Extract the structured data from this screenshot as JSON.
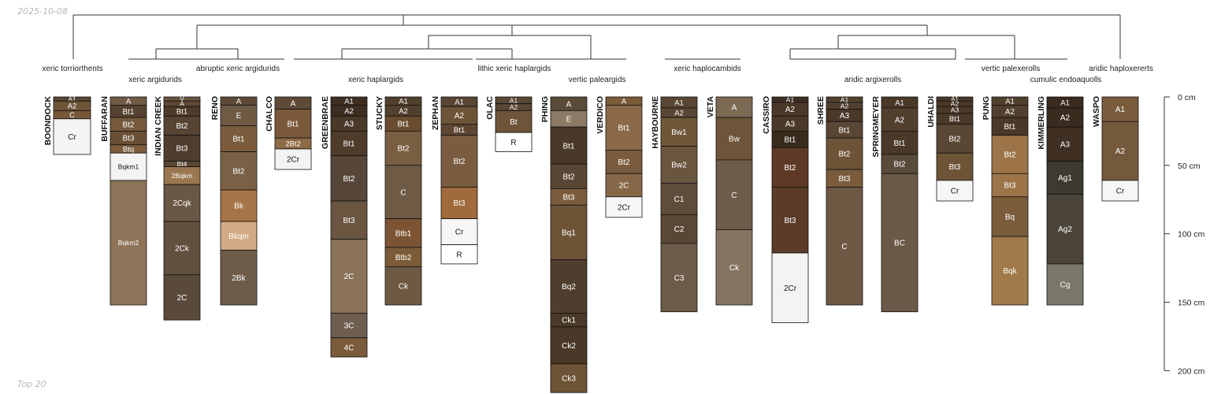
{
  "date_label": "2025-10-08",
  "footer_label": "Top 20",
  "depth_axis": {
    "max_cm": 200,
    "ticks": [
      {
        "value": 0,
        "label": "0 cm"
      },
      {
        "value": 50,
        "label": "50 cm"
      },
      {
        "value": 100,
        "label": "100 cm"
      },
      {
        "value": 150,
        "label": "150 cm"
      },
      {
        "value": 200,
        "label": "200 cm"
      }
    ]
  },
  "taxa": [
    {
      "label": "xeric torriorthents"
    },
    {
      "label": "xeric argidurids"
    },
    {
      "label": "abruptic xeric argidurids"
    },
    {
      "label": "xeric haplargids"
    },
    {
      "label": "lithic xeric haplargids"
    },
    {
      "label": "vertic paleargids"
    },
    {
      "label": "xeric haplocambids"
    },
    {
      "label": "aridic argixerolls"
    },
    {
      "label": "vertic palexerolls"
    },
    {
      "label": "cumulic endoaquolls"
    },
    {
      "label": "aridic haploxererts"
    }
  ],
  "profiles": [
    {
      "name": "BOONDOCK",
      "horizons": [
        {
          "name": "A1",
          "top": 0,
          "bottom": 3,
          "color": "#5a4634"
        },
        {
          "name": "A2",
          "top": 3,
          "bottom": 10,
          "color": "#6e5538"
        },
        {
          "name": "C",
          "top": 10,
          "bottom": 16,
          "color": "#76583a"
        },
        {
          "name": "Cr",
          "top": 16,
          "bottom": 42,
          "color": "#f4f4f4"
        }
      ]
    },
    {
      "name": "BUFFARAN",
      "horizons": [
        {
          "name": "A",
          "top": 0,
          "bottom": 6,
          "color": "#6f5b46"
        },
        {
          "name": "Bt1",
          "top": 6,
          "bottom": 15,
          "color": "#56432f"
        },
        {
          "name": "Bt2",
          "top": 15,
          "bottom": 25,
          "color": "#76593c"
        },
        {
          "name": "Bt3",
          "top": 25,
          "bottom": 35,
          "color": "#6a4f35"
        },
        {
          "name": "Btq",
          "top": 35,
          "bottom": 41,
          "color": "#7c5e3e"
        },
        {
          "name": "Bqkm1",
          "top": 41,
          "bottom": 61,
          "color": "#f3f3f3"
        },
        {
          "name": "Bqkm2",
          "top": 61,
          "bottom": 152,
          "color": "#8d7357"
        }
      ]
    },
    {
      "name": "INDIAN CREEK",
      "horizons": [
        {
          "name": "V",
          "top": 0,
          "bottom": 3,
          "color": "#6a543d"
        },
        {
          "name": "A",
          "top": 3,
          "bottom": 7,
          "color": "#5e4835"
        },
        {
          "name": "Bt1",
          "top": 7,
          "bottom": 14,
          "color": "#4e3b29"
        },
        {
          "name": "Bt2",
          "top": 14,
          "bottom": 28,
          "color": "#574433"
        },
        {
          "name": "Bt3",
          "top": 28,
          "bottom": 47,
          "color": "#4f3d2d"
        },
        {
          "name": "Bt4",
          "top": 47,
          "bottom": 51,
          "color": "#5a4633"
        },
        {
          "name": "2Bqkm",
          "top": 51,
          "bottom": 64,
          "color": "#9a7750"
        },
        {
          "name": "2Cqk",
          "top": 64,
          "bottom": 91,
          "color": "#6a5744"
        },
        {
          "name": "2Ck",
          "top": 91,
          "bottom": 130,
          "color": "#62503e"
        },
        {
          "name": "2C",
          "top": 130,
          "bottom": 163,
          "color": "#5a4a3b"
        }
      ]
    },
    {
      "name": "RENO",
      "horizons": [
        {
          "name": "A",
          "top": 0,
          "bottom": 6,
          "color": "#5e4a38"
        },
        {
          "name": "E",
          "top": 6,
          "bottom": 21,
          "color": "#6f5a43"
        },
        {
          "name": "Bt1",
          "top": 21,
          "bottom": 40,
          "color": "#7a5c3c"
        },
        {
          "name": "Bt2",
          "top": 40,
          "bottom": 68,
          "color": "#7a6045"
        },
        {
          "name": "Bk",
          "top": 68,
          "bottom": 91,
          "color": "#a67547"
        },
        {
          "name": "Bkqm",
          "top": 91,
          "bottom": 112,
          "color": "#d1ab85"
        },
        {
          "name": "2Bk",
          "top": 112,
          "bottom": 152,
          "color": "#6e5c48"
        }
      ]
    },
    {
      "name": "CHALCO",
      "horizons": [
        {
          "name": "A",
          "top": 0,
          "bottom": 9,
          "color": "#5e4a37"
        },
        {
          "name": "Bt1",
          "top": 9,
          "bottom": 30,
          "color": "#7a5a3a"
        },
        {
          "name": "2Bt2",
          "top": 30,
          "bottom": 38,
          "color": "#8e6a45"
        },
        {
          "name": "2Cr",
          "top": 38,
          "bottom": 53,
          "color": "#f3f3f3"
        }
      ]
    },
    {
      "name": "GREENBRAE",
      "horizons": [
        {
          "name": "A1",
          "top": 0,
          "bottom": 6,
          "color": "#3e2e22"
        },
        {
          "name": "A2",
          "top": 6,
          "bottom": 14,
          "color": "#3e2e22"
        },
        {
          "name": "A3",
          "top": 14,
          "bottom": 25,
          "color": "#4a3828"
        },
        {
          "name": "Bt1",
          "top": 25,
          "bottom": 43,
          "color": "#4f3b2a"
        },
        {
          "name": "Bt2",
          "top": 43,
          "bottom": 76,
          "color": "#56473a"
        },
        {
          "name": "Bt3",
          "top": 76,
          "bottom": 104,
          "color": "#6a5540"
        },
        {
          "name": "2C",
          "top": 104,
          "bottom": 158,
          "color": "#8a7257"
        },
        {
          "name": "3C",
          "top": 158,
          "bottom": 176,
          "color": "#6e5e50"
        },
        {
          "name": "4C",
          "top": 176,
          "bottom": 190,
          "color": "#7a5c3a"
        }
      ]
    },
    {
      "name": "STUCKY",
      "horizons": [
        {
          "name": "A1",
          "top": 0,
          "bottom": 6,
          "color": "#52402e"
        },
        {
          "name": "A2",
          "top": 6,
          "bottom": 14,
          "color": "#52402e"
        },
        {
          "name": "Bt1",
          "top": 14,
          "bottom": 25,
          "color": "#6a4c30"
        },
        {
          "name": "Bt2",
          "top": 25,
          "bottom": 50,
          "color": "#7a5e42"
        },
        {
          "name": "C",
          "top": 50,
          "bottom": 89,
          "color": "#6e5a45"
        },
        {
          "name": "Btb1",
          "top": 89,
          "bottom": 110,
          "color": "#7c5434"
        },
        {
          "name": "Btb2",
          "top": 110,
          "bottom": 124,
          "color": "#7c5c38"
        },
        {
          "name": "Ck",
          "top": 124,
          "bottom": 152,
          "color": "#6e5a43"
        }
      ]
    },
    {
      "name": "ZEPHAN",
      "horizons": [
        {
          "name": "A1",
          "top": 0,
          "bottom": 7,
          "color": "#5a4634"
        },
        {
          "name": "A2",
          "top": 7,
          "bottom": 20,
          "color": "#6e5437"
        },
        {
          "name": "Bt1",
          "top": 20,
          "bottom": 28,
          "color": "#5f4732"
        },
        {
          "name": "Bt2",
          "top": 28,
          "bottom": 66,
          "color": "#7a5d40"
        },
        {
          "name": "Bt3",
          "top": 66,
          "bottom": 89,
          "color": "#a06a3c"
        },
        {
          "name": "Cr",
          "top": 89,
          "bottom": 108,
          "color": "#f6f6f6"
        },
        {
          "name": "R",
          "top": 108,
          "bottom": 122,
          "color": "#ffffff"
        }
      ]
    },
    {
      "name": "OLAC",
      "horizons": [
        {
          "name": "A1",
          "top": 0,
          "bottom": 5,
          "color": "#5a4634"
        },
        {
          "name": "A2",
          "top": 5,
          "bottom": 10,
          "color": "#5a4634"
        },
        {
          "name": "Bt",
          "top": 10,
          "bottom": 26,
          "color": "#6e5438"
        },
        {
          "name": "R",
          "top": 26,
          "bottom": 40,
          "color": "#ffffff"
        }
      ]
    },
    {
      "name": "PHING",
      "horizons": [
        {
          "name": "A",
          "top": 0,
          "bottom": 10,
          "color": "#5a4a38"
        },
        {
          "name": "E",
          "top": 10,
          "bottom": 22,
          "color": "#8c7a66"
        },
        {
          "name": "Bt1",
          "top": 22,
          "bottom": 49,
          "color": "#4a3828"
        },
        {
          "name": "Bt2",
          "top": 49,
          "bottom": 67,
          "color": "#5a4634"
        },
        {
          "name": "Bt3",
          "top": 67,
          "bottom": 79,
          "color": "#7a5c3c"
        },
        {
          "name": "Bq1",
          "top": 79,
          "bottom": 119,
          "color": "#6e5437"
        },
        {
          "name": "Bq2",
          "top": 119,
          "bottom": 158,
          "color": "#4f3e2d"
        },
        {
          "name": "Ck1",
          "top": 158,
          "bottom": 168,
          "color": "#4a3828"
        },
        {
          "name": "Ck2",
          "top": 168,
          "bottom": 195,
          "color": "#4a3828"
        },
        {
          "name": "Ck3",
          "top": 195,
          "bottom": 216,
          "color": "#6e5437"
        }
      ]
    },
    {
      "name": "VERDICO",
      "horizons": [
        {
          "name": "A",
          "top": 0,
          "bottom": 6,
          "color": "#7a5c3a"
        },
        {
          "name": "Bt1",
          "top": 6,
          "bottom": 39,
          "color": "#8a6a48"
        },
        {
          "name": "Bt2",
          "top": 39,
          "bottom": 56,
          "color": "#7a5c3e"
        },
        {
          "name": "2C",
          "top": 56,
          "bottom": 73,
          "color": "#866848"
        },
        {
          "name": "2Cr",
          "top": 73,
          "bottom": 88,
          "color": "#f6f6f6"
        }
      ]
    },
    {
      "name": "HAYBOURNE",
      "horizons": [
        {
          "name": "A1",
          "top": 0,
          "bottom": 8,
          "color": "#5a4634"
        },
        {
          "name": "A2",
          "top": 8,
          "bottom": 15,
          "color": "#5a4634"
        },
        {
          "name": "Bw1",
          "top": 15,
          "bottom": 36,
          "color": "#6e5639"
        },
        {
          "name": "Bw2",
          "top": 36,
          "bottom": 63,
          "color": "#6a553f"
        },
        {
          "name": "C1",
          "top": 63,
          "bottom": 86,
          "color": "#5f4c3a"
        },
        {
          "name": "C2",
          "top": 86,
          "bottom": 107,
          "color": "#5a4735"
        },
        {
          "name": "C3",
          "top": 107,
          "bottom": 157,
          "color": "#6e5c4a"
        }
      ]
    },
    {
      "name": "VETA",
      "horizons": [
        {
          "name": "A",
          "top": 0,
          "bottom": 15,
          "color": "#7d6a55"
        },
        {
          "name": "Bw",
          "top": 15,
          "bottom": 46,
          "color": "#6e5438"
        },
        {
          "name": "C",
          "top": 46,
          "bottom": 97,
          "color": "#6e5c4a"
        },
        {
          "name": "Ck",
          "top": 97,
          "bottom": 152,
          "color": "#857560"
        }
      ]
    },
    {
      "name": "CASSIRO",
      "horizons": [
        {
          "name": "A1",
          "top": 0,
          "bottom": 4,
          "color": "#3e2e22"
        },
        {
          "name": "A2",
          "top": 4,
          "bottom": 14,
          "color": "#4a3828"
        },
        {
          "name": "A3",
          "top": 14,
          "bottom": 25,
          "color": "#4a3828"
        },
        {
          "name": "Bt1",
          "top": 25,
          "bottom": 37,
          "color": "#3a2b1f"
        },
        {
          "name": "Bt2",
          "top": 37,
          "bottom": 66,
          "color": "#5e3a26"
        },
        {
          "name": "Bt3",
          "top": 66,
          "bottom": 114,
          "color": "#5a3c28"
        },
        {
          "name": "2Cr",
          "top": 114,
          "bottom": 165,
          "color": "#f3f3f3"
        }
      ]
    },
    {
      "name": "SHREE",
      "horizons": [
        {
          "name": "A1",
          "top": 0,
          "bottom": 4,
          "color": "#52402e"
        },
        {
          "name": "A2",
          "top": 4,
          "bottom": 9,
          "color": "#52402e"
        },
        {
          "name": "A3",
          "top": 9,
          "bottom": 18,
          "color": "#4a3828"
        },
        {
          "name": "Bt1",
          "top": 18,
          "bottom": 30,
          "color": "#5a4634"
        },
        {
          "name": "Bt2",
          "top": 30,
          "bottom": 53,
          "color": "#6e5437"
        },
        {
          "name": "Bt3",
          "top": 53,
          "bottom": 66,
          "color": "#7a5c3c"
        },
        {
          "name": "C",
          "top": 66,
          "bottom": 152,
          "color": "#6e5844"
        }
      ]
    },
    {
      "name": "SPRINGMEYER",
      "horizons": [
        {
          "name": "A1",
          "top": 0,
          "bottom": 8,
          "color": "#4a3828"
        },
        {
          "name": "A2",
          "top": 8,
          "bottom": 25,
          "color": "#52402e"
        },
        {
          "name": "Bt1",
          "top": 25,
          "bottom": 42,
          "color": "#4a3828"
        },
        {
          "name": "Bt2",
          "top": 42,
          "bottom": 56,
          "color": "#5a4a3a"
        },
        {
          "name": "BC",
          "top": 56,
          "bottom": 157,
          "color": "#6b5948"
        }
      ]
    },
    {
      "name": "UHALDI",
      "horizons": [
        {
          "name": "A1",
          "top": 0,
          "bottom": 3,
          "color": "#4a3828"
        },
        {
          "name": "A2",
          "top": 3,
          "bottom": 7,
          "color": "#4a3828"
        },
        {
          "name": "A3",
          "top": 7,
          "bottom": 12,
          "color": "#4a3828"
        },
        {
          "name": "Bt1",
          "top": 12,
          "bottom": 20,
          "color": "#4a3828"
        },
        {
          "name": "Bt2",
          "top": 20,
          "bottom": 41,
          "color": "#5a4634"
        },
        {
          "name": "Bt3",
          "top": 41,
          "bottom": 61,
          "color": "#6e5437"
        },
        {
          "name": "Cr",
          "top": 61,
          "bottom": 76,
          "color": "#f6f6f6"
        }
      ]
    },
    {
      "name": "PUNG",
      "horizons": [
        {
          "name": "A1",
          "top": 0,
          "bottom": 6,
          "color": "#52402e"
        },
        {
          "name": "A2",
          "top": 6,
          "bottom": 15,
          "color": "#52402e"
        },
        {
          "name": "Bt1",
          "top": 15,
          "bottom": 28,
          "color": "#4a3828"
        },
        {
          "name": "Bt2",
          "top": 28,
          "bottom": 56,
          "color": "#9c7448"
        },
        {
          "name": "Bt3",
          "top": 56,
          "bottom": 73,
          "color": "#9c7448"
        },
        {
          "name": "Bq",
          "top": 73,
          "bottom": 102,
          "color": "#7a5c3a"
        },
        {
          "name": "Bqk",
          "top": 102,
          "bottom": 152,
          "color": "#a07a48"
        }
      ]
    },
    {
      "name": "KIMMERLING",
      "horizons": [
        {
          "name": "A1",
          "top": 0,
          "bottom": 8,
          "color": "#3a2b1f"
        },
        {
          "name": "A2",
          "top": 8,
          "bottom": 22,
          "color": "#3a2b1f"
        },
        {
          "name": "A3",
          "top": 22,
          "bottom": 47,
          "color": "#3e2f22"
        },
        {
          "name": "Ag1",
          "top": 47,
          "bottom": 71,
          "color": "#3e3a30"
        },
        {
          "name": "Ag2",
          "top": 71,
          "bottom": 122,
          "color": "#4a4538"
        },
        {
          "name": "Cg",
          "top": 122,
          "bottom": 152,
          "color": "#7a7868"
        }
      ]
    },
    {
      "name": "WASPO",
      "horizons": [
        {
          "name": "A1",
          "top": 0,
          "bottom": 18,
          "color": "#7a5c3c"
        },
        {
          "name": "A2",
          "top": 18,
          "bottom": 61,
          "color": "#75593d"
        },
        {
          "name": "Cr",
          "top": 61,
          "bottom": 76,
          "color": "#f6f6f6"
        }
      ]
    }
  ]
}
